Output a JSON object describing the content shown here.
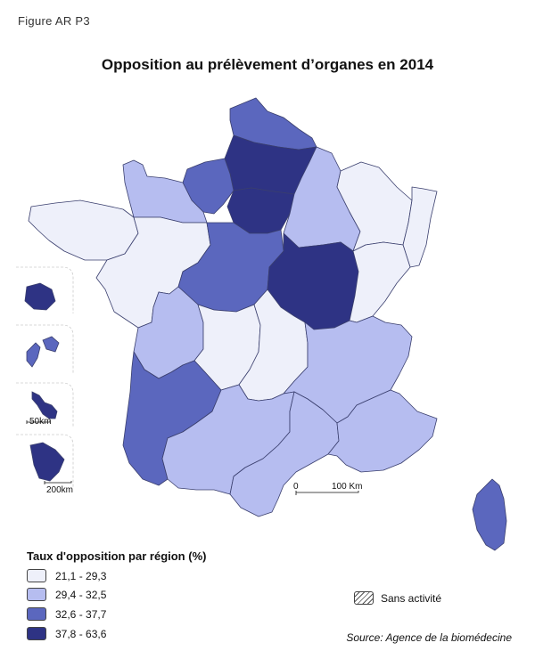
{
  "figure_label": "Figure AR P3",
  "title": "Opposition au prélèvement d’organes en 2014",
  "legend": {
    "title": "Taux d'opposition par région (%)",
    "classes": [
      {
        "label": "21,1 - 29,3",
        "color": "#eef0fa"
      },
      {
        "label": "29,4 - 32,5",
        "color": "#b6bdf0"
      },
      {
        "label": "32,6 - 37,7",
        "color": "#5b67be"
      },
      {
        "label": "37,8 - 63,6",
        "color": "#2e3384"
      }
    ]
  },
  "no_activity_label": "Sans activité",
  "source": "Source: Agence de la biomédecine",
  "scale_bar": {
    "start": "0",
    "end": "100 Km"
  },
  "inset_scales": {
    "inset_3": "50km",
    "inset_4": "200km"
  },
  "colors": {
    "border": "#3a3f6e",
    "outline": "#2a2a2a"
  }
}
